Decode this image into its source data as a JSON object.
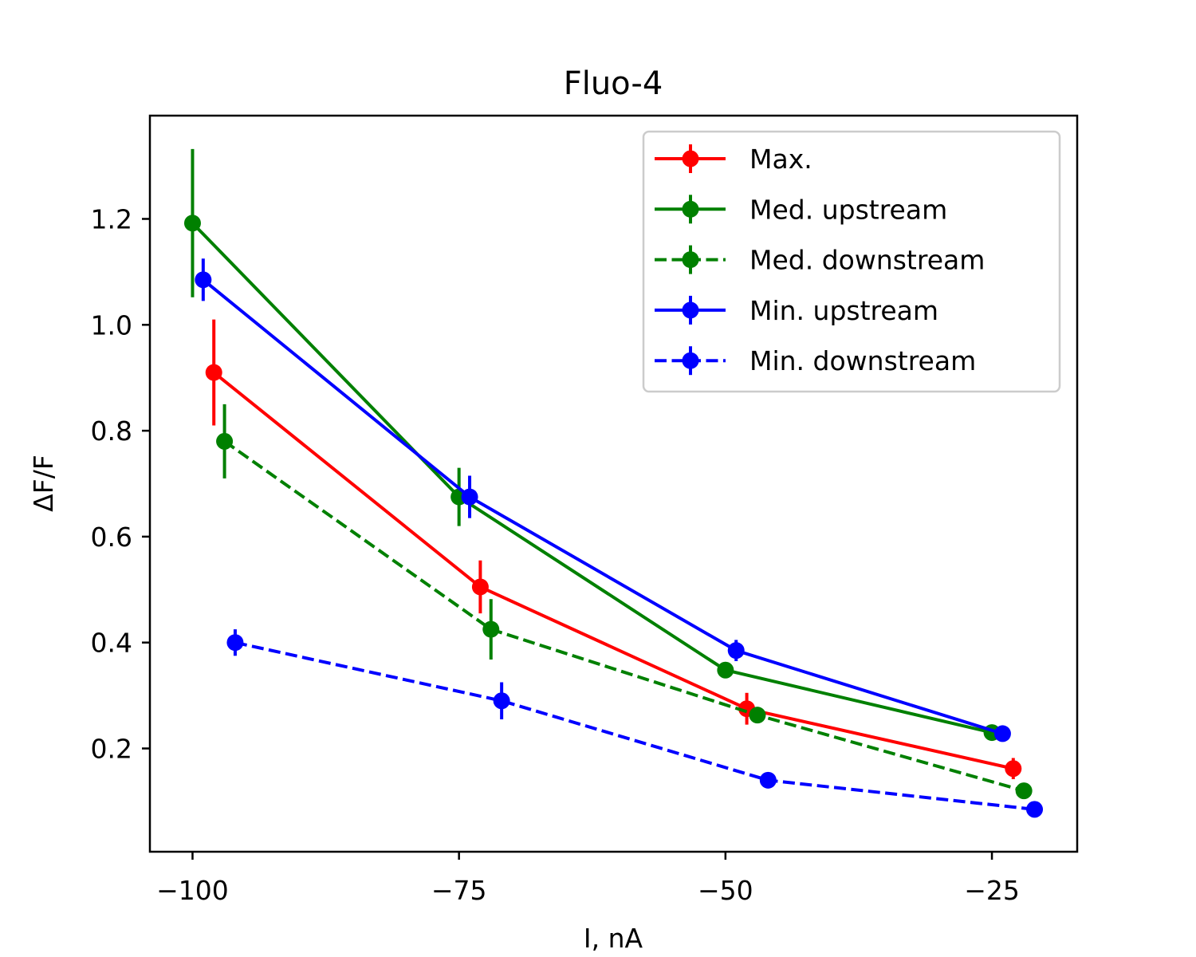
{
  "chart_data": {
    "type": "line",
    "title": "Fluo-4",
    "xlabel": "I, nA",
    "ylabel": "ΔF/F",
    "xlim": [
      -104,
      -17
    ],
    "ylim": [
      0.005,
      1.395
    ],
    "xticks": [
      -100,
      -75,
      -50,
      -25
    ],
    "xtick_labels": [
      "−100",
      "−75",
      "−50",
      "−25"
    ],
    "yticks": [
      0.2,
      0.4,
      0.6,
      0.8,
      1.0,
      1.2
    ],
    "ytick_labels": [
      "0.2",
      "0.4",
      "0.6",
      "0.8",
      "1.0",
      "1.2"
    ],
    "grid": false,
    "legend_position": "top-right",
    "series": [
      {
        "name": "Max.",
        "color": "#ff0000",
        "linestyle": "solid",
        "x": [
          -98,
          -73,
          -48,
          -23
        ],
        "y": [
          0.91,
          0.505,
          0.275,
          0.162
        ],
        "yerr": [
          0.1,
          0.05,
          0.03,
          0.02
        ]
      },
      {
        "name": "Med. upstream",
        "color": "#008000",
        "linestyle": "solid",
        "x": [
          -100,
          -75,
          -50,
          -25
        ],
        "y": [
          1.192,
          0.675,
          0.348,
          0.23
        ],
        "yerr": [
          0.14,
          0.055,
          0.01,
          0.01
        ]
      },
      {
        "name": "Med. downstream",
        "color": "#008000",
        "linestyle": "dashed",
        "x": [
          -97,
          -72,
          -47,
          -22
        ],
        "y": [
          0.78,
          0.425,
          0.263,
          0.12
        ],
        "yerr": [
          0.07,
          0.057,
          0.01,
          0.01
        ]
      },
      {
        "name": "Min. upstream",
        "color": "#0000ff",
        "linestyle": "solid",
        "x": [
          -99,
          -74,
          -49,
          -24
        ],
        "y": [
          1.085,
          0.675,
          0.385,
          0.228
        ],
        "yerr": [
          0.04,
          0.04,
          0.02,
          0.01
        ]
      },
      {
        "name": "Min. downstream",
        "color": "#0000ff",
        "linestyle": "dashed",
        "x": [
          -96,
          -71,
          -46,
          -21
        ],
        "y": [
          0.4,
          0.29,
          0.14,
          0.085
        ],
        "yerr": [
          0.025,
          0.035,
          0.01,
          0.01
        ]
      }
    ]
  }
}
